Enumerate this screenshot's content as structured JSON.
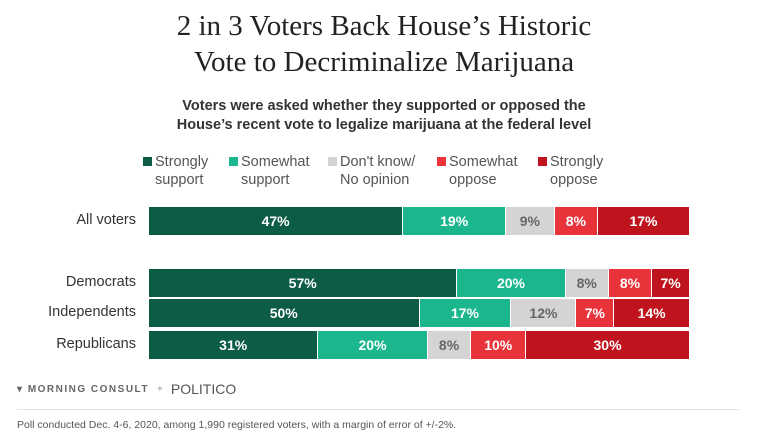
{
  "title": [
    "2 in 3 Voters Back House’s Historic",
    "Vote to Decriminalize Marijuana"
  ],
  "subtitle": [
    "Voters were asked whether they supported or opposed the",
    "House’s recent vote to legalize marijuana at the federal level"
  ],
  "chart_data": {
    "type": "bar",
    "stacked": true,
    "orientation": "horizontal",
    "categories": [
      "All voters",
      "Democrats",
      "Independents",
      "Republicans"
    ],
    "series": [
      {
        "name": "Strongly support",
        "color": "#0d5c45",
        "values": [
          47,
          57,
          50,
          31
        ]
      },
      {
        "name": "Somewhat support",
        "color": "#1bb68e",
        "values": [
          19,
          20,
          17,
          20
        ]
      },
      {
        "name": "Don't know/ No opinion",
        "color": "#d4d4d4",
        "values": [
          9,
          8,
          12,
          8
        ]
      },
      {
        "name": "Somewhat oppose",
        "color": "#e8333b",
        "values": [
          8,
          8,
          7,
          10
        ]
      },
      {
        "name": "Strongly oppose",
        "color": "#bf141d",
        "values": [
          17,
          7,
          14,
          30
        ]
      }
    ],
    "legend_position": "top",
    "grid": false
  },
  "legend_lines": [
    [
      "Strongly",
      "support"
    ],
    [
      "Somewhat",
      "support"
    ],
    [
      "Don't know/",
      "No opinion"
    ],
    [
      "Somewhat",
      "oppose"
    ],
    [
      "Strongly",
      "oppose"
    ]
  ],
  "footer": {
    "brand": "MORNING CONSULT",
    "plus": "+",
    "partner": "POLITICO",
    "note": "Poll conducted Dec. 4-6, 2020, among 1,990 registered voters, with a margin of error of +/-2%."
  }
}
